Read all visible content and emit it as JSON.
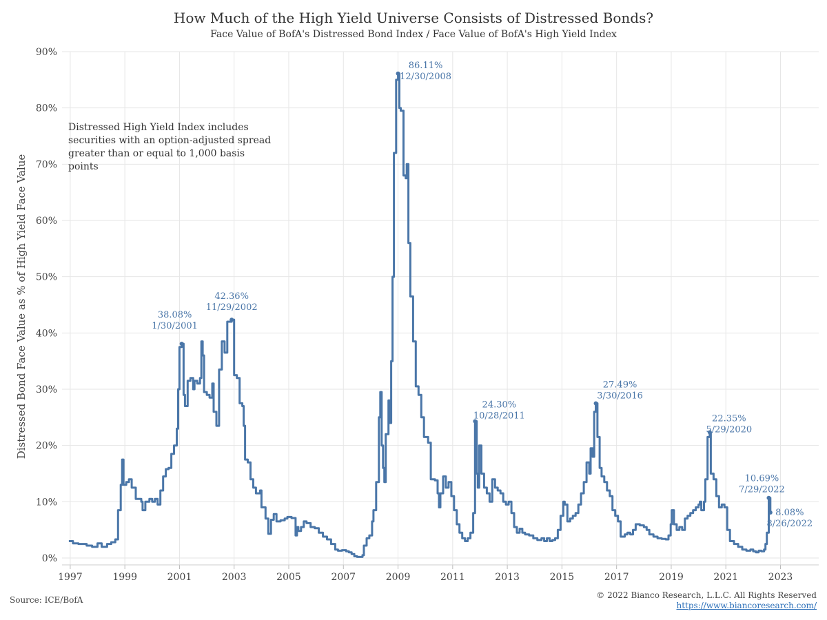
{
  "header": {
    "title": "How Much of the High Yield Universe Consists of Distressed Bonds?",
    "subtitle": "Face Value of BofA's Distressed Bond Index / Face Value of BofA's High Yield Index"
  },
  "note": {
    "line1": "Distressed High Yield Index includes",
    "line2": "securities with an option-adjusted spread",
    "line3": "greater than or equal to 1,000 basis points"
  },
  "footer": {
    "source": "Source: ICE/BofA",
    "copyright": "© 2022 Bianco Research, L.L.C. All Rights Reserved",
    "url": "https://www.biancoresearch.com/"
  },
  "colors": {
    "line": "#4a76a8",
    "grid": "#e6e6e6",
    "text": "#333333"
  },
  "chart_data": {
    "type": "line",
    "title": "How Much of the High Yield Universe Consists of Distressed Bonds?",
    "subtitle": "Face Value of BofA's Distressed Bond Index / Face Value of BofA's High Yield Index",
    "xlabel": "",
    "ylabel": "Distressed Bond Face Value as % of High Yield Face Value",
    "xlim": [
      1996.7,
      2024.4
    ],
    "ylim": [
      0,
      90
    ],
    "grid": true,
    "x_ticks": [
      "1997",
      "1999",
      "2001",
      "2003",
      "2005",
      "2007",
      "2009",
      "2011",
      "2013",
      "2015",
      "2017",
      "2019",
      "2021",
      "2023"
    ],
    "y_ticks": [
      "0%",
      "10%",
      "20%",
      "30%",
      "40%",
      "50%",
      "60%",
      "70%",
      "80%",
      "90%"
    ],
    "series": [
      {
        "values_format": "[decimal year, percent]",
        "points": [
          [
            1996.95,
            3.0
          ],
          [
            1997.1,
            2.6
          ],
          [
            1997.3,
            2.5
          ],
          [
            1997.6,
            2.2
          ],
          [
            1997.8,
            2.0
          ],
          [
            1998.0,
            2.6
          ],
          [
            1998.15,
            2.0
          ],
          [
            1998.35,
            2.5
          ],
          [
            1998.5,
            2.8
          ],
          [
            1998.65,
            3.3
          ],
          [
            1998.75,
            8.5
          ],
          [
            1998.85,
            13.0
          ],
          [
            1998.9,
            17.5
          ],
          [
            1998.95,
            13.0
          ],
          [
            1999.05,
            13.5
          ],
          [
            1999.15,
            14.0
          ],
          [
            1999.25,
            12.5
          ],
          [
            1999.4,
            10.5
          ],
          [
            1999.6,
            10.0
          ],
          [
            1999.65,
            8.5
          ],
          [
            1999.75,
            10.0
          ],
          [
            1999.9,
            10.5
          ],
          [
            2000.0,
            10.0
          ],
          [
            2000.1,
            10.5
          ],
          [
            2000.2,
            9.5
          ],
          [
            2000.3,
            12.0
          ],
          [
            2000.4,
            14.5
          ],
          [
            2000.5,
            15.8
          ],
          [
            2000.6,
            16.0
          ],
          [
            2000.7,
            18.5
          ],
          [
            2000.8,
            20.0
          ],
          [
            2000.9,
            23.0
          ],
          [
            2000.95,
            30.0
          ],
          [
            2001.0,
            37.5
          ],
          [
            2001.08,
            38.08
          ],
          [
            2001.15,
            29.0
          ],
          [
            2001.2,
            27.0
          ],
          [
            2001.3,
            31.5
          ],
          [
            2001.4,
            32.0
          ],
          [
            2001.5,
            30.0
          ],
          [
            2001.55,
            31.5
          ],
          [
            2001.65,
            31.0
          ],
          [
            2001.75,
            32.0
          ],
          [
            2001.8,
            38.5
          ],
          [
            2001.85,
            36.0
          ],
          [
            2001.9,
            29.5
          ],
          [
            2002.0,
            29.0
          ],
          [
            2002.1,
            28.5
          ],
          [
            2002.2,
            31.0
          ],
          [
            2002.25,
            26.0
          ],
          [
            2002.35,
            23.5
          ],
          [
            2002.45,
            33.5
          ],
          [
            2002.55,
            38.5
          ],
          [
            2002.65,
            36.5
          ],
          [
            2002.75,
            42.0
          ],
          [
            2002.91,
            42.36
          ],
          [
            2003.0,
            32.5
          ],
          [
            2003.1,
            32.0
          ],
          [
            2003.2,
            27.5
          ],
          [
            2003.3,
            27.0
          ],
          [
            2003.35,
            23.5
          ],
          [
            2003.4,
            17.5
          ],
          [
            2003.5,
            17.0
          ],
          [
            2003.6,
            14.0
          ],
          [
            2003.7,
            12.5
          ],
          [
            2003.8,
            11.5
          ],
          [
            2003.95,
            12.0
          ],
          [
            2004.0,
            9.0
          ],
          [
            2004.15,
            7.0
          ],
          [
            2004.25,
            4.3
          ],
          [
            2004.35,
            6.8
          ],
          [
            2004.45,
            7.8
          ],
          [
            2004.55,
            6.5
          ],
          [
            2004.7,
            6.7
          ],
          [
            2004.85,
            7.0
          ],
          [
            2004.95,
            7.3
          ],
          [
            2005.1,
            7.1
          ],
          [
            2005.25,
            4.0
          ],
          [
            2005.3,
            5.5
          ],
          [
            2005.35,
            4.8
          ],
          [
            2005.45,
            5.5
          ],
          [
            2005.55,
            6.5
          ],
          [
            2005.65,
            6.2
          ],
          [
            2005.8,
            5.5
          ],
          [
            2005.95,
            5.3
          ],
          [
            2006.1,
            4.5
          ],
          [
            2006.25,
            3.8
          ],
          [
            2006.4,
            3.3
          ],
          [
            2006.55,
            2.5
          ],
          [
            2006.7,
            1.5
          ],
          [
            2006.8,
            1.3
          ],
          [
            2006.95,
            1.4
          ],
          [
            2007.1,
            1.2
          ],
          [
            2007.2,
            1.0
          ],
          [
            2007.3,
            0.7
          ],
          [
            2007.4,
            0.3
          ],
          [
            2007.5,
            0.2
          ],
          [
            2007.6,
            0.2
          ],
          [
            2007.7,
            0.5
          ],
          [
            2007.75,
            2.2
          ],
          [
            2007.85,
            3.5
          ],
          [
            2007.95,
            4.0
          ],
          [
            2008.05,
            6.5
          ],
          [
            2008.1,
            8.5
          ],
          [
            2008.2,
            13.5
          ],
          [
            2008.3,
            25.0
          ],
          [
            2008.35,
            29.5
          ],
          [
            2008.4,
            20.0
          ],
          [
            2008.45,
            16.0
          ],
          [
            2008.5,
            13.5
          ],
          [
            2008.55,
            22.0
          ],
          [
            2008.65,
            28.0
          ],
          [
            2008.7,
            24.0
          ],
          [
            2008.75,
            35.0
          ],
          [
            2008.8,
            50.0
          ],
          [
            2008.85,
            72.0
          ],
          [
            2008.93,
            85.0
          ],
          [
            2009.0,
            86.11
          ],
          [
            2009.05,
            80.0
          ],
          [
            2009.1,
            79.5
          ],
          [
            2009.2,
            68.0
          ],
          [
            2009.28,
            67.5
          ],
          [
            2009.32,
            70.0
          ],
          [
            2009.38,
            56.0
          ],
          [
            2009.45,
            46.5
          ],
          [
            2009.55,
            38.5
          ],
          [
            2009.65,
            30.5
          ],
          [
            2009.75,
            29.0
          ],
          [
            2009.85,
            25.0
          ],
          [
            2009.95,
            21.5
          ],
          [
            2010.1,
            20.5
          ],
          [
            2010.2,
            14.0
          ],
          [
            2010.35,
            13.8
          ],
          [
            2010.45,
            11.5
          ],
          [
            2010.5,
            9.0
          ],
          [
            2010.55,
            11.5
          ],
          [
            2010.65,
            14.5
          ],
          [
            2010.75,
            12.5
          ],
          [
            2010.85,
            13.5
          ],
          [
            2010.95,
            11.0
          ],
          [
            2011.05,
            8.5
          ],
          [
            2011.15,
            6.0
          ],
          [
            2011.25,
            4.5
          ],
          [
            2011.35,
            3.5
          ],
          [
            2011.45,
            3.0
          ],
          [
            2011.55,
            3.5
          ],
          [
            2011.65,
            4.5
          ],
          [
            2011.75,
            8.0
          ],
          [
            2011.82,
            24.3
          ],
          [
            2011.88,
            15.0
          ],
          [
            2011.92,
            12.5
          ],
          [
            2011.97,
            20.0
          ],
          [
            2012.05,
            15.0
          ],
          [
            2012.15,
            12.5
          ],
          [
            2012.25,
            11.5
          ],
          [
            2012.35,
            10.0
          ],
          [
            2012.45,
            14.0
          ],
          [
            2012.55,
            12.5
          ],
          [
            2012.65,
            12.0
          ],
          [
            2012.75,
            11.5
          ],
          [
            2012.85,
            10.0
          ],
          [
            2012.95,
            9.5
          ],
          [
            2013.05,
            10.0
          ],
          [
            2013.15,
            8.0
          ],
          [
            2013.25,
            5.5
          ],
          [
            2013.35,
            4.5
          ],
          [
            2013.45,
            5.2
          ],
          [
            2013.55,
            4.5
          ],
          [
            2013.65,
            4.2
          ],
          [
            2013.8,
            4.0
          ],
          [
            2013.95,
            3.5
          ],
          [
            2014.1,
            3.2
          ],
          [
            2014.25,
            3.5
          ],
          [
            2014.35,
            3.0
          ],
          [
            2014.45,
            3.5
          ],
          [
            2014.55,
            3.0
          ],
          [
            2014.65,
            3.2
          ],
          [
            2014.75,
            3.5
          ],
          [
            2014.85,
            5.0
          ],
          [
            2014.95,
            7.5
          ],
          [
            2015.05,
            10.0
          ],
          [
            2015.1,
            9.5
          ],
          [
            2015.2,
            6.5
          ],
          [
            2015.3,
            7.0
          ],
          [
            2015.4,
            7.5
          ],
          [
            2015.5,
            8.0
          ],
          [
            2015.6,
            9.5
          ],
          [
            2015.7,
            11.5
          ],
          [
            2015.8,
            13.5
          ],
          [
            2015.9,
            17.0
          ],
          [
            2016.0,
            15.0
          ],
          [
            2016.05,
            19.5
          ],
          [
            2016.12,
            18.0
          ],
          [
            2016.18,
            26.0
          ],
          [
            2016.24,
            27.49
          ],
          [
            2016.3,
            21.5
          ],
          [
            2016.38,
            16.0
          ],
          [
            2016.45,
            14.5
          ],
          [
            2016.55,
            13.5
          ],
          [
            2016.65,
            12.0
          ],
          [
            2016.75,
            11.0
          ],
          [
            2016.85,
            8.5
          ],
          [
            2016.95,
            7.5
          ],
          [
            2017.05,
            6.5
          ],
          [
            2017.15,
            3.8
          ],
          [
            2017.3,
            4.2
          ],
          [
            2017.4,
            4.5
          ],
          [
            2017.5,
            4.2
          ],
          [
            2017.6,
            5.0
          ],
          [
            2017.7,
            6.0
          ],
          [
            2017.85,
            5.8
          ],
          [
            2018.0,
            5.5
          ],
          [
            2018.1,
            5.0
          ],
          [
            2018.2,
            4.2
          ],
          [
            2018.35,
            3.8
          ],
          [
            2018.5,
            3.5
          ],
          [
            2018.65,
            3.4
          ],
          [
            2018.8,
            3.3
          ],
          [
            2018.9,
            4.0
          ],
          [
            2018.98,
            6.0
          ],
          [
            2019.02,
            8.5
          ],
          [
            2019.1,
            6.0
          ],
          [
            2019.2,
            5.0
          ],
          [
            2019.3,
            5.5
          ],
          [
            2019.4,
            5.0
          ],
          [
            2019.5,
            7.0
          ],
          [
            2019.6,
            7.5
          ],
          [
            2019.7,
            8.0
          ],
          [
            2019.8,
            8.5
          ],
          [
            2019.9,
            9.0
          ],
          [
            2020.0,
            9.5
          ],
          [
            2020.05,
            10.0
          ],
          [
            2020.1,
            8.5
          ],
          [
            2020.2,
            10.0
          ],
          [
            2020.25,
            14.0
          ],
          [
            2020.33,
            21.5
          ],
          [
            2020.41,
            22.35
          ],
          [
            2020.45,
            15.0
          ],
          [
            2020.55,
            14.0
          ],
          [
            2020.65,
            11.0
          ],
          [
            2020.75,
            9.0
          ],
          [
            2020.85,
            9.5
          ],
          [
            2020.95,
            9.0
          ],
          [
            2021.05,
            5.0
          ],
          [
            2021.15,
            3.0
          ],
          [
            2021.3,
            2.5
          ],
          [
            2021.45,
            2.0
          ],
          [
            2021.6,
            1.5
          ],
          [
            2021.75,
            1.3
          ],
          [
            2021.9,
            1.5
          ],
          [
            2022.0,
            1.2
          ],
          [
            2022.1,
            1.0
          ],
          [
            2022.2,
            1.3
          ],
          [
            2022.3,
            1.2
          ],
          [
            2022.4,
            1.5
          ],
          [
            2022.45,
            2.5
          ],
          [
            2022.5,
            4.5
          ],
          [
            2022.57,
            10.69
          ],
          [
            2022.63,
            8.08
          ]
        ]
      }
    ],
    "annotations": [
      {
        "value": "38.08%",
        "date": "1/30/2001",
        "x": 2001.08,
        "y": 38.08
      },
      {
        "value": "42.36%",
        "date": "11/29/2002",
        "x": 2002.91,
        "y": 42.36
      },
      {
        "value": "86.11%",
        "date": "12/30/2008",
        "x": 2009.0,
        "y": 86.11
      },
      {
        "value": "24.30%",
        "date": "10/28/2011",
        "x": 2011.82,
        "y": 24.3
      },
      {
        "value": "27.49%",
        "date": "3/30/2016",
        "x": 2016.24,
        "y": 27.49
      },
      {
        "value": "22.35%",
        "date": "5/29/2020",
        "x": 2020.41,
        "y": 22.35
      },
      {
        "value": "10.69%",
        "date": "7/29/2022",
        "x": 2022.57,
        "y": 10.69
      },
      {
        "value": "8.08%",
        "date": "8/26/2022",
        "x": 2022.63,
        "y": 8.08
      }
    ]
  }
}
